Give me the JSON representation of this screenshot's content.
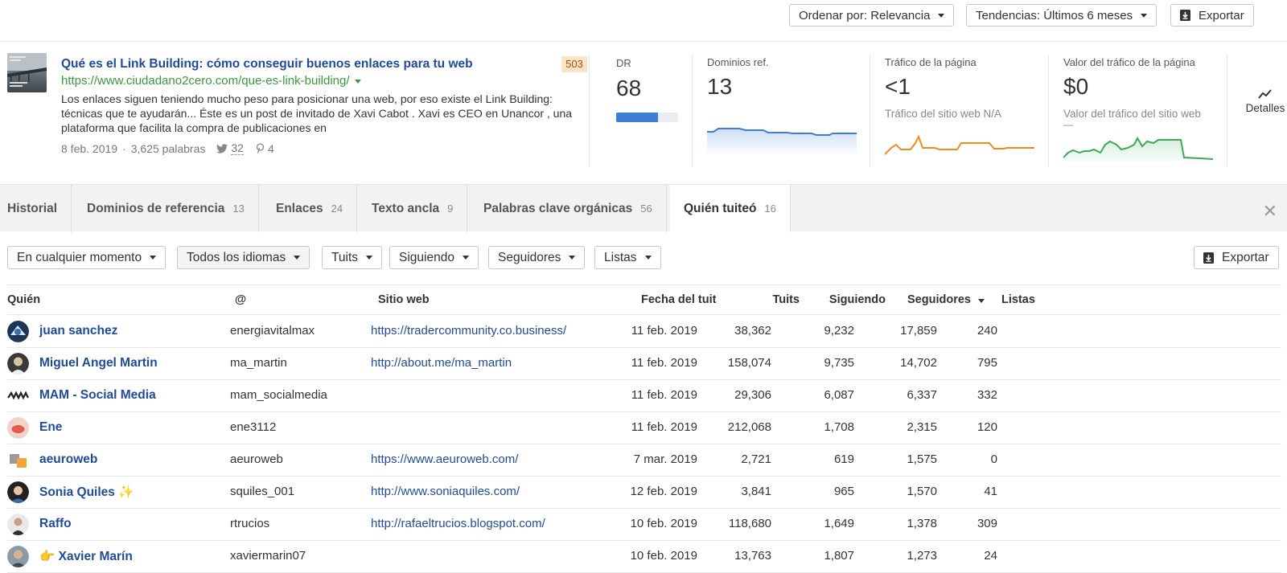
{
  "toolbar": {
    "sort_label": "Ordenar por: Relevancia",
    "trends_label": "Tendencias: Últimos 6 meses",
    "export_label": "Exportar"
  },
  "result": {
    "title": "Qué es el Link Building: cómo conseguir buenos enlaces para tu web",
    "badge": "503",
    "url": "https://www.ciudadano2cero.com/que-es-link-building/",
    "description": "Los enlaces siguen teniendo mucho peso para posicionar una web, por eso existe el Link Building: técnicas que te ayudarán... Éste es un post de invitado de Xavi Cabot . Xavi es CEO en Unancor , una plataforma que facilita la compra de publicaciones en",
    "date": "8 feb. 2019",
    "separator": "·",
    "words": "3,625 palabras",
    "tweets": "32",
    "pins": "4"
  },
  "metrics": {
    "dr": {
      "label": "DR",
      "value": "68",
      "level": 0.68
    },
    "ref_domains": {
      "label": "Dominios ref.",
      "value": "13"
    },
    "traffic": {
      "label": "Tráfico de la página",
      "value": "<1",
      "sub": "Tráfico del sitio web N/A"
    },
    "traffic_value": {
      "label": "Valor del tráfico de la página",
      "value": "$0",
      "sub": "Valor del tráfico del sitio web",
      "sub2": "—"
    },
    "details_label": "Detalles"
  },
  "colors": {
    "link": "#1f4b99",
    "url_green": "#3a9a3a",
    "chart_blue": "#3d7fd6",
    "chart_orange": "#f08c1e",
    "chart_green": "#3caa54"
  },
  "tabs": [
    {
      "label": "Historial",
      "count": ""
    },
    {
      "label": "Dominios de referencia",
      "count": "13"
    },
    {
      "label": "Enlaces",
      "count": "24"
    },
    {
      "label": "Texto ancla",
      "count": "9"
    },
    {
      "label": "Palabras clave orgánicas",
      "count": "56"
    },
    {
      "label": "Quién tuiteó",
      "count": "16"
    }
  ],
  "filters": {
    "time": "En cualquier momento",
    "languages": "Todos los idiomas",
    "tweets": "Tuits",
    "following": "Siguiendo",
    "followers": "Seguidores",
    "lists": "Listas",
    "export_label": "Exportar"
  },
  "table": {
    "headers": {
      "who": "Quién",
      "handle": "@",
      "website": "Sitio web",
      "date": "Fecha del tuit",
      "tweets": "Tuits",
      "following": "Siguiendo",
      "followers": "Seguidores",
      "lists": "Listas"
    },
    "rows": [
      {
        "name": "juan sanchez",
        "handle": "energiavitalmax",
        "website": "https://tradercommunity.co.business/",
        "date": "11 feb. 2019",
        "tweets": "38,362",
        "following": "9,232",
        "followers": "17,859",
        "lists": "240"
      },
      {
        "name": "Miguel Angel Martin",
        "handle": "ma_martin",
        "website": "http://about.me/ma_martin",
        "date": "11 feb. 2019",
        "tweets": "158,074",
        "following": "9,735",
        "followers": "14,702",
        "lists": "795"
      },
      {
        "name": "MAM - Social Media",
        "handle": "mam_socialmedia",
        "website": "",
        "date": "11 feb. 2019",
        "tweets": "29,306",
        "following": "6,087",
        "followers": "6,337",
        "lists": "332"
      },
      {
        "name": "Ene",
        "handle": "ene3112",
        "website": "",
        "date": "11 feb. 2019",
        "tweets": "212,068",
        "following": "1,708",
        "followers": "2,315",
        "lists": "120"
      },
      {
        "name": "aeuroweb",
        "handle": "aeuroweb",
        "website": "https://www.aeuroweb.com/",
        "date": "7 mar. 2019",
        "tweets": "2,721",
        "following": "619",
        "followers": "1,575",
        "lists": "0"
      },
      {
        "name": "Sonia Quiles ✨",
        "handle": "squiles_001",
        "website": "http://www.soniaquiles.com/",
        "date": "12 feb. 2019",
        "tweets": "3,841",
        "following": "965",
        "followers": "1,570",
        "lists": "41"
      },
      {
        "name": "Raffo",
        "handle": "rtrucios",
        "website": "http://rafaeltrucios.blogspot.com/",
        "date": "10 feb. 2019",
        "tweets": "118,680",
        "following": "1,649",
        "followers": "1,378",
        "lists": "309"
      },
      {
        "name": "👉 Xavier Marín",
        "handle": "xaviermarin07",
        "website": "",
        "date": "10 feb. 2019",
        "tweets": "13,763",
        "following": "1,807",
        "followers": "1,273",
        "lists": "24"
      }
    ]
  }
}
